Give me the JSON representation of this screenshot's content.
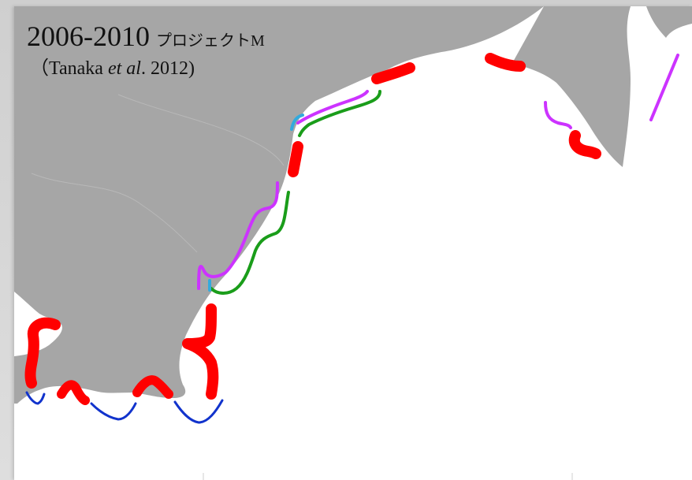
{
  "title": {
    "years": "2006-2010",
    "project": "プロジェクトM",
    "citation_open": "（Tanaka ",
    "citation_italic": "et al",
    "citation_close": ". 2012)"
  },
  "colors": {
    "land": "#a6a6a6",
    "sea": "#ffffff",
    "red_segment": "#ff0000",
    "purple_segment": "#cc33ff",
    "green_segment": "#1a9d1a",
    "blue_segment": "#1133cc",
    "cyan_segment": "#33aadd"
  }
}
